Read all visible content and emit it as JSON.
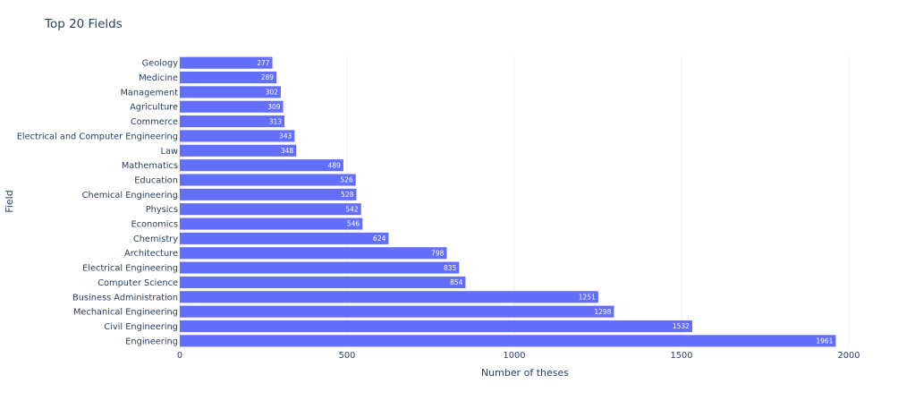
{
  "chart_data": {
    "type": "bar",
    "orientation": "horizontal",
    "title": "Top 20 Fields",
    "xlabel": "Number of theses",
    "ylabel": "Field",
    "xlim": [
      0,
      2000
    ],
    "xticks": [
      0,
      500,
      1000,
      1500,
      2000
    ],
    "grid": true,
    "bar_color": "#636efa",
    "categories": [
      "Geology",
      "Medicine",
      "Management",
      "Agriculture",
      "Commerce",
      "Electrical and Computer Engineering",
      "Law",
      "Mathematics",
      "Education",
      "Chemical Engineering",
      "Physics",
      "Economics",
      "Chemistry",
      "Architecture",
      "Electrical Engineering",
      "Computer Science",
      "Business Administration",
      "Mechanical Engineering",
      "Civil Engineering",
      "Engineering"
    ],
    "values": [
      277,
      289,
      302,
      309,
      313,
      343,
      348,
      489,
      526,
      528,
      542,
      546,
      624,
      798,
      835,
      854,
      1251,
      1298,
      1532,
      1961
    ]
  }
}
